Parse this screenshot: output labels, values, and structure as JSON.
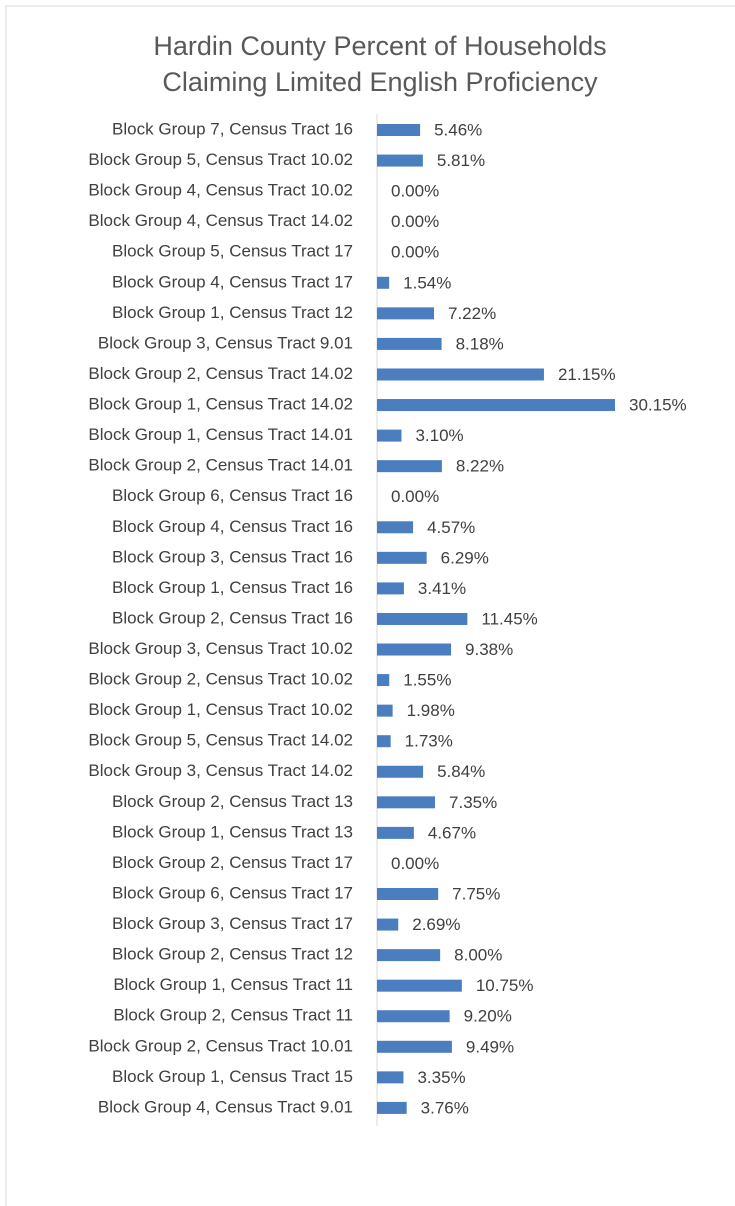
{
  "chart_data": {
    "type": "bar",
    "orientation": "horizontal",
    "title": "Hardin County Percent of Households Claiming Limited English Proficiency",
    "categories": [
      "Block Group 7, Census Tract 16",
      "Block Group 5, Census Tract 10.02",
      "Block Group 4, Census Tract 10.02",
      "Block Group 4, Census Tract 14.02",
      "Block Group 5, Census Tract 17",
      "Block Group 4, Census Tract 17",
      "Block Group 1, Census Tract 12",
      "Block Group 3, Census Tract 9.01",
      "Block Group 2, Census Tract 14.02",
      "Block Group 1, Census Tract 14.02",
      "Block Group 1, Census Tract 14.01",
      "Block Group 2, Census Tract 14.01",
      "Block Group 6, Census Tract 16",
      "Block Group 4, Census Tract 16",
      "Block Group 3, Census Tract 16",
      "Block Group 1, Census Tract 16",
      "Block Group 2, Census Tract 16",
      "Block Group 3, Census Tract 10.02",
      "Block Group 2, Census Tract 10.02",
      "Block Group 1, Census Tract 10.02",
      "Block Group 5, Census Tract 14.02",
      "Block Group 3, Census Tract 14.02",
      "Block Group 2, Census Tract 13",
      "Block Group 1, Census Tract 13",
      "Block Group 2, Census Tract 17",
      "Block Group 6, Census Tract 17",
      "Block Group 3, Census Tract 17",
      "Block Group 2, Census Tract 12",
      "Block Group 1, Census Tract 11",
      "Block Group 2, Census Tract 11",
      "Block Group 2, Census Tract 10.01",
      "Block Group 1, Census Tract 15",
      "Block Group 4, Census Tract 9.01"
    ],
    "values": [
      5.46,
      5.81,
      0,
      0,
      0,
      1.54,
      7.22,
      8.18,
      21.15,
      30.15,
      3.1,
      8.22,
      0,
      4.57,
      6.29,
      3.41,
      11.45,
      9.38,
      1.55,
      1.98,
      1.73,
      5.84,
      7.35,
      4.67,
      0,
      7.75,
      2.69,
      8.0,
      10.75,
      9.2,
      9.49,
      3.35,
      3.76
    ],
    "value_labels": [
      "5.46%",
      "5.81%",
      "0.00%",
      "0.00%",
      "0.00%",
      "1.54%",
      "7.22%",
      "8.18%",
      "21.15%",
      "30.15%",
      "3.10%",
      "8.22%",
      "0.00%",
      "4.57%",
      "6.29%",
      "3.41%",
      "11.45%",
      "9.38%",
      "1.55%",
      "1.98%",
      "1.73%",
      "5.84%",
      "7.35%",
      "4.67%",
      "0.00%",
      "7.75%",
      "2.69%",
      "8.00%",
      "10.75%",
      "9.20%",
      "9.49%",
      "3.35%",
      "3.76%"
    ],
    "color": "#4a7ebf"
  }
}
